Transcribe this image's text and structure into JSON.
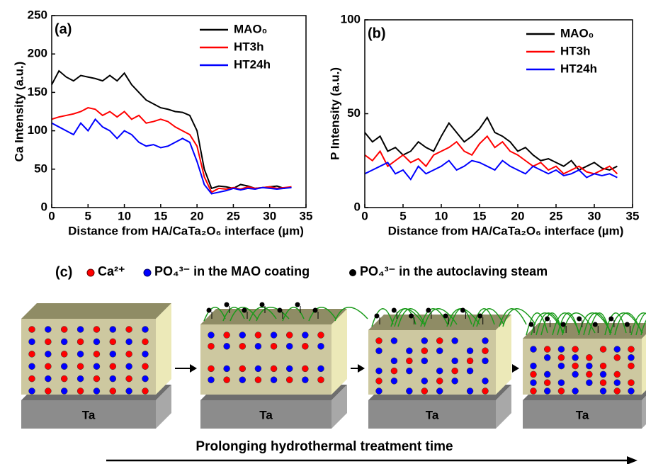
{
  "chart_data": [
    {
      "type": "line",
      "annotation": "(a)",
      "x_label": "Distance from HA/CaTa₂O₆ interface (µm)",
      "y_label": "Ca Intensity (a.u.)",
      "x": [
        0,
        1,
        2,
        3,
        4,
        5,
        6,
        7,
        8,
        9,
        10,
        11,
        12,
        13,
        14,
        15,
        16,
        17,
        18,
        19,
        20,
        21,
        22,
        23,
        24,
        25,
        26,
        27,
        28,
        29,
        30,
        31,
        32,
        33
      ],
      "series": [
        {
          "name": "MAO₀",
          "color": "#000000",
          "values": [
            160,
            178,
            170,
            165,
            172,
            170,
            168,
            165,
            172,
            165,
            175,
            160,
            150,
            140,
            135,
            130,
            128,
            125,
            124,
            120,
            100,
            50,
            25,
            28,
            27,
            25,
            30,
            28,
            25,
            26,
            27,
            28,
            25,
            27
          ]
        },
        {
          "name": "HT3h",
          "color": "#ff0000",
          "values": [
            115,
            118,
            120,
            122,
            125,
            130,
            128,
            120,
            125,
            118,
            125,
            115,
            120,
            110,
            112,
            115,
            112,
            105,
            100,
            95,
            80,
            40,
            20,
            25,
            24,
            26,
            24,
            27,
            25,
            26,
            27,
            25,
            26,
            27
          ]
        },
        {
          "name": "HT24h",
          "color": "#0000ff",
          "values": [
            110,
            105,
            100,
            95,
            110,
            100,
            115,
            105,
            100,
            90,
            100,
            95,
            85,
            80,
            82,
            78,
            80,
            85,
            90,
            85,
            60,
            30,
            18,
            20,
            22,
            25,
            23,
            25,
            24,
            26,
            25,
            24,
            25,
            26
          ]
        }
      ],
      "xlim": [
        0,
        35
      ],
      "xticks": [
        0,
        5,
        10,
        15,
        20,
        25,
        30,
        35
      ],
      "ylim": [
        0,
        250
      ],
      "yticks": [
        0,
        50,
        100,
        150,
        200,
        250
      ],
      "legend": "upper right"
    },
    {
      "type": "line",
      "annotation": "(b)",
      "x_label": "Distance from HA/CaTa₂O₆ interface (µm)",
      "y_label": "P Intensity (a.u.)",
      "x": [
        0,
        1,
        2,
        3,
        4,
        5,
        6,
        7,
        8,
        9,
        10,
        11,
        12,
        13,
        14,
        15,
        16,
        17,
        18,
        19,
        20,
        21,
        22,
        23,
        24,
        25,
        26,
        27,
        28,
        29,
        30,
        31,
        32,
        33
      ],
      "series": [
        {
          "name": "MAO₀",
          "color": "#000000",
          "values": [
            40,
            35,
            38,
            30,
            32,
            28,
            30,
            35,
            32,
            30,
            38,
            45,
            40,
            35,
            38,
            42,
            48,
            40,
            38,
            35,
            30,
            32,
            28,
            25,
            26,
            24,
            22,
            25,
            20,
            22,
            24,
            21,
            20,
            22
          ]
        },
        {
          "name": "HT3h",
          "color": "#ff0000",
          "values": [
            28,
            25,
            30,
            22,
            25,
            28,
            24,
            26,
            22,
            28,
            30,
            32,
            35,
            30,
            28,
            34,
            38,
            32,
            35,
            30,
            28,
            25,
            22,
            24,
            20,
            22,
            18,
            20,
            22,
            19,
            18,
            20,
            22,
            18
          ]
        },
        {
          "name": "HT24h",
          "color": "#0000ff",
          "values": [
            18,
            20,
            22,
            24,
            18,
            20,
            15,
            22,
            18,
            20,
            22,
            25,
            20,
            22,
            25,
            24,
            22,
            20,
            25,
            22,
            20,
            18,
            22,
            20,
            18,
            20,
            17,
            18,
            20,
            16,
            18,
            17,
            18,
            16
          ]
        }
      ],
      "xlim": [
        0,
        35
      ],
      "xticks": [
        0,
        5,
        10,
        15,
        20,
        25,
        30,
        35
      ],
      "ylim": [
        0,
        100
      ],
      "yticks": [
        0,
        50,
        100
      ],
      "legend": "upper right"
    }
  ],
  "diagram": {
    "label": "(c)",
    "legend": [
      "Ca²⁺",
      "PO₄³⁻  in the MAO coating",
      "PO₄³⁻  in the autoclaving steam"
    ],
    "substrate": [
      "Ta",
      "Ta",
      "Ta",
      "Ta"
    ],
    "caption": "Prolonging hydrothermal treatment time"
  }
}
